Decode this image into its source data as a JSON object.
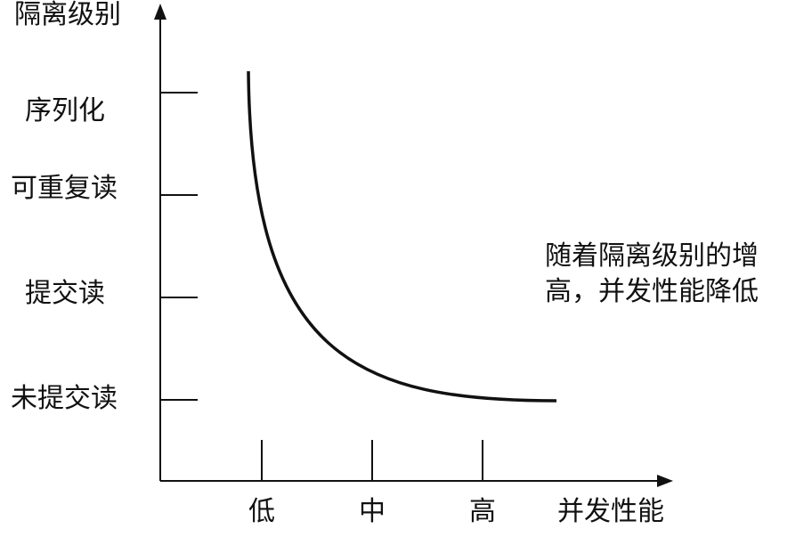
{
  "chart_data": {
    "type": "line",
    "xlabel": "并发性能",
    "ylabel": "隔离级别",
    "x_categories": [
      "低",
      "中",
      "高"
    ],
    "y_categories": [
      "未提交读",
      "提交读",
      "可重复读",
      "序列化"
    ],
    "series": [
      {
        "points": [
          {
            "x": "低",
            "y": "序列化"
          },
          {
            "x": "中",
            "y": "未提交读"
          },
          {
            "x": "高",
            "y": "未提交读"
          }
        ]
      }
    ]
  },
  "annotation": {
    "line1": "随着隔离级别的增",
    "line2": "高，并发性能降低"
  }
}
